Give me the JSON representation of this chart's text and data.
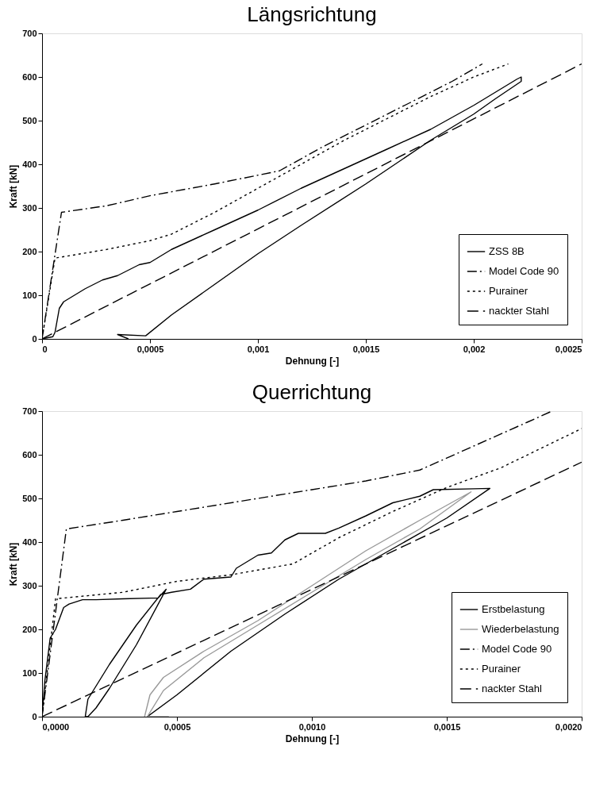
{
  "chart_data": [
    {
      "type": "line",
      "title": "Längsrichtung",
      "xlabel": "Dehnung [-]",
      "ylabel": "Kraft [kN]",
      "xlim": [
        0,
        0.0025
      ],
      "ylim": [
        0,
        700
      ],
      "xticks": [
        0,
        {
          "value": 0.0005,
          "label": "0,0005"
        },
        {
          "value": 0.001,
          "label": "0,001"
        },
        {
          "value": 0.0015,
          "label": "0,0015"
        },
        {
          "value": 0.002,
          "label": "0,002"
        },
        {
          "value": 0.0025,
          "label": "0,0025"
        }
      ],
      "yticks": [
        0,
        100,
        200,
        300,
        400,
        500,
        600,
        700
      ],
      "grid": false,
      "legend": "bottom right",
      "marker": "none",
      "series": [
        {
          "name": "ZSS 8B",
          "color": "#000000",
          "line_style": "solid",
          "x": [
            0,
            5e-05,
            6e-05,
            8e-05,
            0.0001,
            0.00015,
            0.0002,
            0.00028,
            0.00035,
            0.00045,
            0.0005,
            0.0006,
            0.0008,
            0.001,
            0.0012,
            0.0014,
            0.0016,
            0.0018,
            0.002,
            0.0022,
            0.00222,
            0.00222,
            0.0021,
            0.002,
            0.0018,
            0.0015,
            0.0012,
            0.001,
            0.0008,
            0.0006,
            0.00048,
            0.00035,
            0.0004
          ],
          "values": [
            0,
            5,
            15,
            70,
            85,
            100,
            115,
            135,
            145,
            170,
            175,
            205,
            250,
            295,
            345,
            390,
            435,
            480,
            535,
            595,
            600,
            590,
            550,
            515,
            455,
            355,
            260,
            195,
            125,
            55,
            7,
            10,
            0
          ]
        },
        {
          "name": "Model Code 90",
          "color": "#000000",
          "line_style": "dashdot",
          "x": [
            0,
            9e-05,
            0.0003,
            0.0005,
            0.0008,
            0.0011,
            0.0013,
            0.0015,
            0.0017,
            0.0019,
            0.00204
          ],
          "values": [
            0,
            290,
            305,
            328,
            355,
            385,
            440,
            490,
            540,
            590,
            630
          ]
        },
        {
          "name": "Purainer",
          "color": "#000000",
          "line_style": "dotted",
          "x": [
            0,
            6e-05,
            0.0003,
            0.0005,
            0.0006,
            0.0008,
            0.001,
            0.0012,
            0.0014,
            0.0016,
            0.0018,
            0.002,
            0.00216
          ],
          "values": [
            0,
            185,
            205,
            225,
            240,
            290,
            345,
            400,
            455,
            505,
            555,
            600,
            630
          ]
        },
        {
          "name": "nackter Stahl",
          "color": "#000000",
          "line_style": "dashed",
          "x": [
            0,
            0.0025
          ],
          "values": [
            0,
            630
          ]
        }
      ]
    },
    {
      "type": "line",
      "title": "Querrichtung",
      "xlabel": "Dehnung [-]",
      "ylabel": "Kraft [kN]",
      "xlim": [
        0,
        0.002
      ],
      "ylim": [
        0,
        700
      ],
      "xticks": [
        {
          "value": 0,
          "label": "0,0000"
        },
        {
          "value": 0.0005,
          "label": "0,0005"
        },
        {
          "value": 0.001,
          "label": "0,0010"
        },
        {
          "value": 0.0015,
          "label": "0,0015"
        },
        {
          "value": 0.002,
          "label": "0,0020"
        }
      ],
      "yticks": [
        0,
        100,
        200,
        300,
        400,
        500,
        600,
        700
      ],
      "grid": false,
      "legend": "bottom right",
      "marker": "none",
      "series": [
        {
          "name": "Erstbelastung",
          "color": "#000000",
          "line_style": "solid",
          "x": [
            0,
            1e-05,
            3e-05,
            5e-05,
            8e-05,
            0.0001,
            0.00015,
            0.0002,
            0.0003,
            0.00043,
            0.00046,
            0.00035,
            0.00025,
            0.0002,
            0.00017,
            0.00016,
            0.00017,
            0.00025,
            0.00035,
            0.00044,
            0.00048,
            0.00055,
            0.0006,
            0.0007,
            0.00072,
            0.0008,
            0.00085,
            0.0009,
            0.00095,
            0.00105,
            0.0011,
            0.0012,
            0.0013,
            0.0014,
            0.00145,
            0.0016,
            0.00166,
            0.0015,
            0.0013,
            0.0011,
            0.0009,
            0.0007,
            0.0005,
            0.00039
          ],
          "values": [
            0,
            80,
            180,
            200,
            250,
            258,
            268,
            268,
            270,
            272,
            292,
            165,
            65,
            20,
            0,
            0,
            40,
            120,
            210,
            280,
            285,
            292,
            315,
            320,
            340,
            370,
            375,
            405,
            420,
            420,
            432,
            460,
            490,
            505,
            520,
            522,
            523,
            455,
            385,
            315,
            235,
            150,
            50,
            0
          ]
        },
        {
          "name": "Wiederbelastung",
          "color": "#999999",
          "line_style": "solid",
          "x": [
            0.00038,
            0.0004,
            0.00045,
            0.0006,
            0.0008,
            0.001,
            0.0012,
            0.0014,
            0.00159,
            0.0014,
            0.0012,
            0.001,
            0.0008,
            0.0006,
            0.00045,
            0.00039,
            0.00047
          ],
          "values": [
            0,
            50,
            90,
            150,
            220,
            300,
            380,
            450,
            515,
            430,
            360,
            285,
            210,
            135,
            60,
            0,
            0
          ]
        },
        {
          "name": "Model Code 90",
          "color": "#000000",
          "line_style": "dashdot",
          "x": [
            0,
            9e-05,
            0.0003,
            0.0005,
            0.0008,
            0.001,
            0.0012,
            0.0014,
            0.0016,
            0.0018,
            0.00189
          ],
          "values": [
            0,
            430,
            450,
            470,
            500,
            520,
            540,
            565,
            620,
            675,
            700
          ]
        },
        {
          "name": "Purainer",
          "color": "#000000",
          "line_style": "dotted",
          "x": [
            0,
            5e-05,
            0.0003,
            0.0005,
            0.0007,
            0.00093,
            0.0011,
            0.0013,
            0.0015,
            0.0017,
            0.0019,
            0.002
          ],
          "values": [
            0,
            270,
            285,
            310,
            325,
            350,
            410,
            470,
            525,
            570,
            630,
            660
          ]
        },
        {
          "name": "nackter Stahl",
          "color": "#000000",
          "line_style": "dashed",
          "x": [
            0,
            0.002
          ],
          "values": [
            0,
            583
          ]
        }
      ]
    }
  ]
}
